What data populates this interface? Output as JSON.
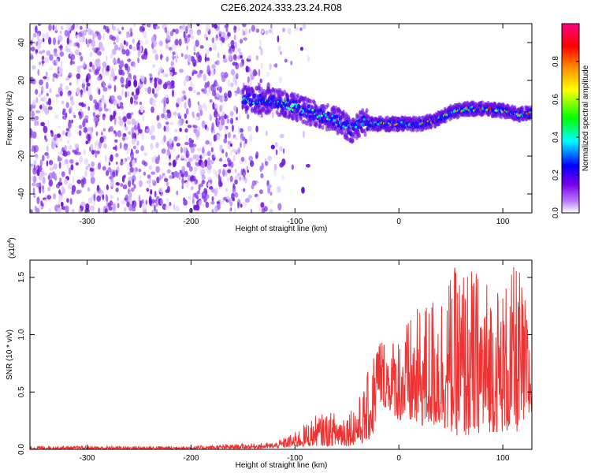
{
  "title": "C2E6.2024.333.23.24.R08",
  "chart_data": [
    {
      "type": "heatmap",
      "name": "spectrogram",
      "xlabel": "Height of straight line (km)",
      "ylabel": "Frequency (Hz)",
      "xlim": [
        -355,
        128
      ],
      "ylim": [
        -50,
        50
      ],
      "xticks": [
        -300,
        -200,
        -100,
        0,
        100
      ],
      "xtick_labels": [
        "-300",
        "-200",
        "-100",
        "0",
        "100"
      ],
      "yticks": [
        -40,
        -20,
        0,
        20,
        40
      ],
      "ytick_labels": [
        "-40",
        "-20",
        "0",
        "20",
        "40"
      ],
      "colorbar": {
        "label": "Normalized spectral amplitude",
        "range": [
          0,
          1
        ],
        "ticks": [
          0.0,
          0.2,
          0.4,
          0.6,
          0.8
        ],
        "tick_labels": [
          "0.0",
          "0.2",
          "0.4",
          "0.6",
          "0.8"
        ],
        "colors": [
          "#ffffff",
          "#8a2be2",
          "#0000ff",
          "#00ffff",
          "#00ff00",
          "#ffff00",
          "#ff8000",
          "#ff0000",
          "#ff0080"
        ]
      },
      "noise_region_x": [
        -355,
        -125
      ],
      "signal_track": [
        {
          "x": -150,
          "y": 10
        },
        {
          "x": -120,
          "y": 9
        },
        {
          "x": -100,
          "y": 6
        },
        {
          "x": -80,
          "y": 2
        },
        {
          "x": -60,
          "y": -1
        },
        {
          "x": -45,
          "y": -6
        },
        {
          "x": -35,
          "y": -2
        },
        {
          "x": -20,
          "y": -3
        },
        {
          "x": 0,
          "y": -3
        },
        {
          "x": 20,
          "y": -3
        },
        {
          "x": 35,
          "y": -1
        },
        {
          "x": 50,
          "y": 3
        },
        {
          "x": 65,
          "y": 5
        },
        {
          "x": 80,
          "y": 5
        },
        {
          "x": 100,
          "y": 4
        },
        {
          "x": 115,
          "y": 2
        },
        {
          "x": 128,
          "y": 3
        }
      ]
    },
    {
      "type": "line",
      "name": "snr",
      "xlabel": "Height of straight line (km)",
      "ylabel": "SNR (10 * v/v)",
      "y_scale_label": "(x10",
      "y_scale_exponent": "4",
      "y_scale_suffix": ")",
      "color": "#ee3333",
      "xlim": [
        -355,
        128
      ],
      "ylim": [
        0,
        1.65
      ],
      "xticks": [
        -300,
        -200,
        -100,
        0,
        100
      ],
      "xtick_labels": [
        "-300",
        "-200",
        "-100",
        "0",
        "100"
      ],
      "yticks": [
        0,
        0.5,
        1.0,
        1.5
      ],
      "ytick_labels": [
        "0.0",
        "0.5",
        "1.0",
        "1.5"
      ],
      "envelope": [
        {
          "x": -355,
          "low": 0.0,
          "high": 0.03
        },
        {
          "x": -200,
          "low": 0.0,
          "high": 0.03
        },
        {
          "x": -120,
          "low": 0.01,
          "high": 0.06
        },
        {
          "x": -100,
          "low": 0.02,
          "high": 0.15
        },
        {
          "x": -80,
          "low": 0.03,
          "high": 0.3
        },
        {
          "x": -50,
          "low": 0.03,
          "high": 0.35
        },
        {
          "x": -35,
          "low": 0.05,
          "high": 0.5
        },
        {
          "x": -25,
          "low": 0.1,
          "high": 0.85
        },
        {
          "x": -20,
          "low": 0.4,
          "high": 1.05
        },
        {
          "x": -10,
          "low": 0.35,
          "high": 0.95
        },
        {
          "x": 0,
          "low": 0.25,
          "high": 1.05
        },
        {
          "x": 20,
          "low": 0.2,
          "high": 1.25
        },
        {
          "x": 40,
          "low": 0.2,
          "high": 1.45
        },
        {
          "x": 60,
          "low": 0.1,
          "high": 1.65
        },
        {
          "x": 80,
          "low": 0.15,
          "high": 1.55
        },
        {
          "x": 100,
          "low": 0.15,
          "high": 1.45
        },
        {
          "x": 115,
          "low": 0.15,
          "high": 1.65
        },
        {
          "x": 128,
          "low": 0.3,
          "high": 1.0
        }
      ]
    }
  ]
}
